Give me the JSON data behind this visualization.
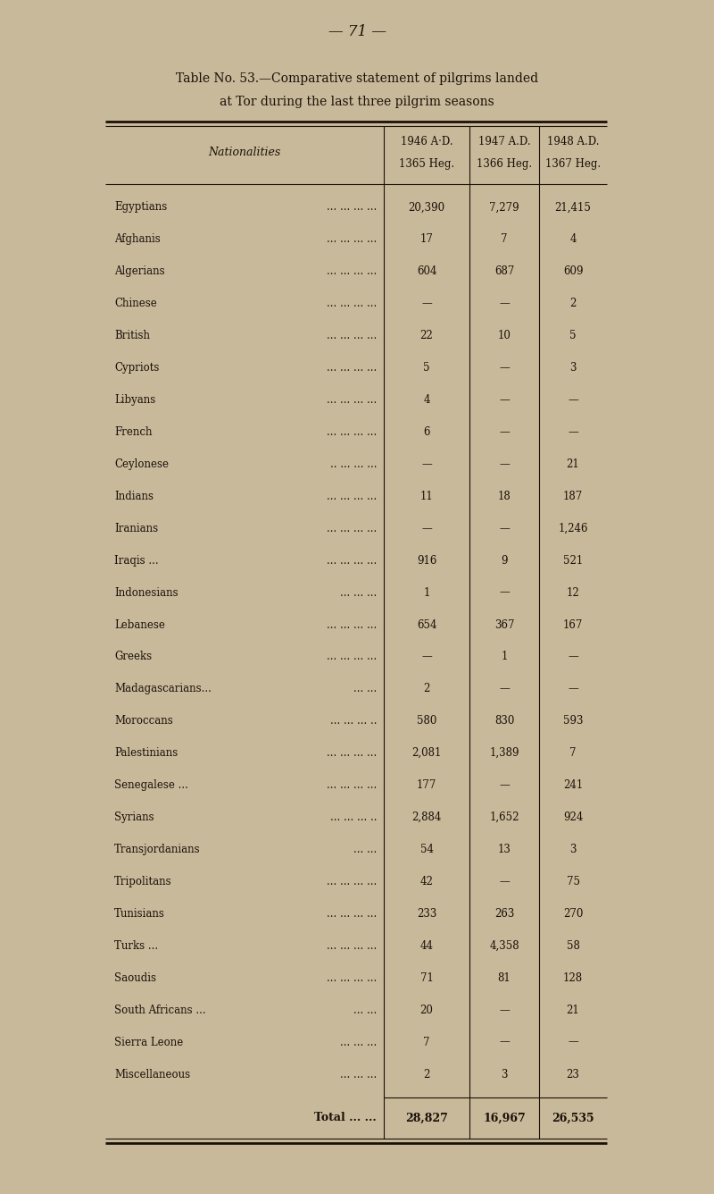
{
  "page_number": "— 71 —",
  "title_line1": "Table No. 53.—Comparative statement of pilgrims landed",
  "title_line2": "at Tor during the last three pilgrim seasons",
  "col_header_nat": "Nationalities",
  "col_header1a": "1946 A·D.",
  "col_header1b": "1365 Heg.",
  "col_header2a": "1947 A.D.",
  "col_header2b": "1366 Heg.",
  "col_header3a": "1948 A.D.",
  "col_header3b": "1367 Heg.",
  "rows": [
    [
      "Egyptians",
      "... ... ... ...",
      "20,390",
      "7,279",
      "21,415"
    ],
    [
      "Afghanis",
      "... ... ... ...",
      "17",
      "7",
      "4"
    ],
    [
      "Algerians",
      "... ... ... ...",
      "604",
      "687",
      "609"
    ],
    [
      "Chinese",
      "... ... ... ...",
      "—",
      "—",
      "2"
    ],
    [
      "British",
      "... ... ... ...",
      "22",
      "10",
      "5"
    ],
    [
      "Cypriots",
      "... ... ... ...",
      "5",
      "—",
      "3"
    ],
    [
      "Libyans",
      "... ... ... ...",
      "4",
      "—",
      "—"
    ],
    [
      "French",
      "... ... ... ...",
      "6",
      "—",
      "—"
    ],
    [
      "Ceylonese",
      ".. ... ... ...",
      "—",
      "—",
      "21"
    ],
    [
      "Indians",
      "... ... ... ...",
      "11",
      "18",
      "187"
    ],
    [
      "Iranians",
      "... ... ... ...",
      "—",
      "—",
      "1,246"
    ],
    [
      "Iraqis ...",
      "... ... ... ...",
      "916",
      "9",
      "521"
    ],
    [
      "Indonesians",
      "... ... ...",
      "1",
      "—",
      "12"
    ],
    [
      "Lebanese",
      "... ... ... ...",
      "654",
      "367",
      "167"
    ],
    [
      "Greeks",
      "... ... ... ...",
      "—",
      "1",
      "—"
    ],
    [
      "Madagascarians...",
      "... ...",
      "2",
      "—",
      "—"
    ],
    [
      "Moroccans",
      "... ... ... ..",
      "580",
      "830",
      "593"
    ],
    [
      "Palestinians",
      "... ... ... ...",
      "2,081",
      "1,389",
      "7"
    ],
    [
      "Senegalese ...",
      "... ... ... ...",
      "177",
      "—",
      "241"
    ],
    [
      "Syrians",
      "... ... ... ..",
      "2,884",
      "1,652",
      "924"
    ],
    [
      "Transjordanians",
      "... ...",
      "54",
      "13",
      "3"
    ],
    [
      "Tripolitans",
      "... ... ... ...",
      "42",
      "—",
      "75"
    ],
    [
      "Tunisians",
      "... ... ... ...",
      "233",
      "263",
      "270"
    ],
    [
      "Turks ...",
      "... ... ... ...",
      "44",
      "4,358",
      "58"
    ],
    [
      "Saoudis",
      "... ... ... ...",
      "71",
      "81",
      "128"
    ],
    [
      "South Africans ...",
      "... ...",
      "20",
      "—",
      "21"
    ],
    [
      "Sierra Leone",
      "... ... ...",
      "7",
      "—",
      "—"
    ],
    [
      "Miscellaneous",
      "... ... ...",
      "2",
      "3",
      "23"
    ]
  ],
  "total_label": "Total ... ...",
  "totals": [
    "28,827",
    "16,967",
    "26,535"
  ],
  "bg_color": "#c8b99a",
  "text_color": "#1a1008"
}
